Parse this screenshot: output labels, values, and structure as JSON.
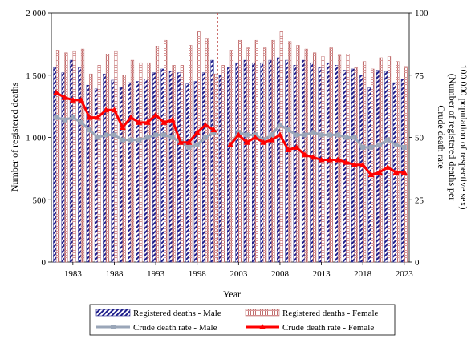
{
  "chart_data": {
    "type": "bar",
    "xlabel": "Year",
    "ylabel": "Number of registered deaths",
    "y2label_line1": "Crude death rate",
    "y2label_line2": "(Number of registered deaths per",
    "y2label_line3": "100 000 population of respective sex)",
    "ylim": [
      0,
      2000
    ],
    "y2lim": [
      0,
      100
    ],
    "y_ticks": [
      "0",
      "500",
      "1 000",
      "1 500",
      "2 000"
    ],
    "y2_ticks": [
      "0",
      "25",
      "50",
      "75",
      "100"
    ],
    "x_tick_labels": [
      "1983",
      "1988",
      "1993",
      "1998",
      "2003",
      "2008",
      "2013",
      "2018",
      "2023"
    ],
    "x_tick_years": [
      1983,
      1988,
      1993,
      1998,
      2003,
      2008,
      2013,
      2018,
      2023
    ],
    "break_after_year": 2000,
    "years": [
      1981,
      1982,
      1983,
      1984,
      1985,
      1986,
      1987,
      1988,
      1989,
      1990,
      1991,
      1992,
      1993,
      1994,
      1995,
      1996,
      1997,
      1998,
      1999,
      2000,
      2001,
      2002,
      2003,
      2004,
      2005,
      2006,
      2007,
      2008,
      2009,
      2010,
      2011,
      2012,
      2013,
      2014,
      2015,
      2016,
      2017,
      2018,
      2019,
      2020,
      2021,
      2022,
      2023
    ],
    "series": [
      {
        "name": "Registered deaths - Male",
        "kind": "bar",
        "values": [
          1560,
          1520,
          1620,
          1560,
          1420,
          1390,
          1510,
          1460,
          1400,
          1440,
          1450,
          1470,
          1520,
          1550,
          1530,
          1520,
          1430,
          1450,
          1520,
          1620,
          1500,
          1560,
          1600,
          1620,
          1600,
          1600,
          1620,
          1640,
          1620,
          1580,
          1620,
          1600,
          1560,
          1600,
          1580,
          1540,
          1550,
          1500,
          1400,
          1540,
          1530,
          1440,
          1470
        ]
      },
      {
        "name": "Registered deaths - Female",
        "kind": "bar",
        "values": [
          1700,
          1680,
          1690,
          1710,
          1510,
          1580,
          1670,
          1690,
          1500,
          1620,
          1600,
          1600,
          1730,
          1780,
          1580,
          1580,
          1740,
          1850,
          1790,
          1510,
          1580,
          1700,
          1780,
          1720,
          1780,
          1720,
          1780,
          1850,
          1770,
          1740,
          1710,
          1680,
          1650,
          1720,
          1660,
          1670,
          1560,
          1610,
          1550,
          1640,
          1650,
          1610,
          1570
        ]
      },
      {
        "name": "Crude death rate - Male",
        "kind": "line",
        "axis": "right",
        "values": [
          58,
          57,
          58,
          56,
          53,
          50,
          51,
          51,
          49,
          49,
          49,
          50,
          51,
          51,
          50,
          48,
          46,
          47,
          50,
          52,
          null,
          47,
          52,
          51,
          51,
          49,
          51,
          55,
          53,
          51,
          51,
          52,
          51,
          51,
          51,
          50,
          50,
          46,
          46,
          47,
          49,
          47,
          46
        ]
      },
      {
        "name": "Crude death rate - Female",
        "kind": "line",
        "axis": "right",
        "values": [
          68,
          66,
          65,
          65,
          58,
          58,
          61,
          61,
          54,
          58,
          56,
          56,
          59,
          56,
          57,
          48,
          48,
          52,
          55,
          53,
          null,
          47,
          51,
          48,
          50,
          48,
          49,
          51,
          45,
          46,
          43,
          42,
          41,
          41,
          41,
          40,
          39,
          39,
          35,
          36,
          38,
          36,
          36
        ]
      }
    ],
    "legend_position": "bottom",
    "colors": {
      "male_bar_stripe": "#1f1f8c",
      "female_bar_stripe": "#c06e6e",
      "male_line": "#9aa6b8",
      "female_line": "#ff0000",
      "break_line": "#c0504d"
    }
  }
}
